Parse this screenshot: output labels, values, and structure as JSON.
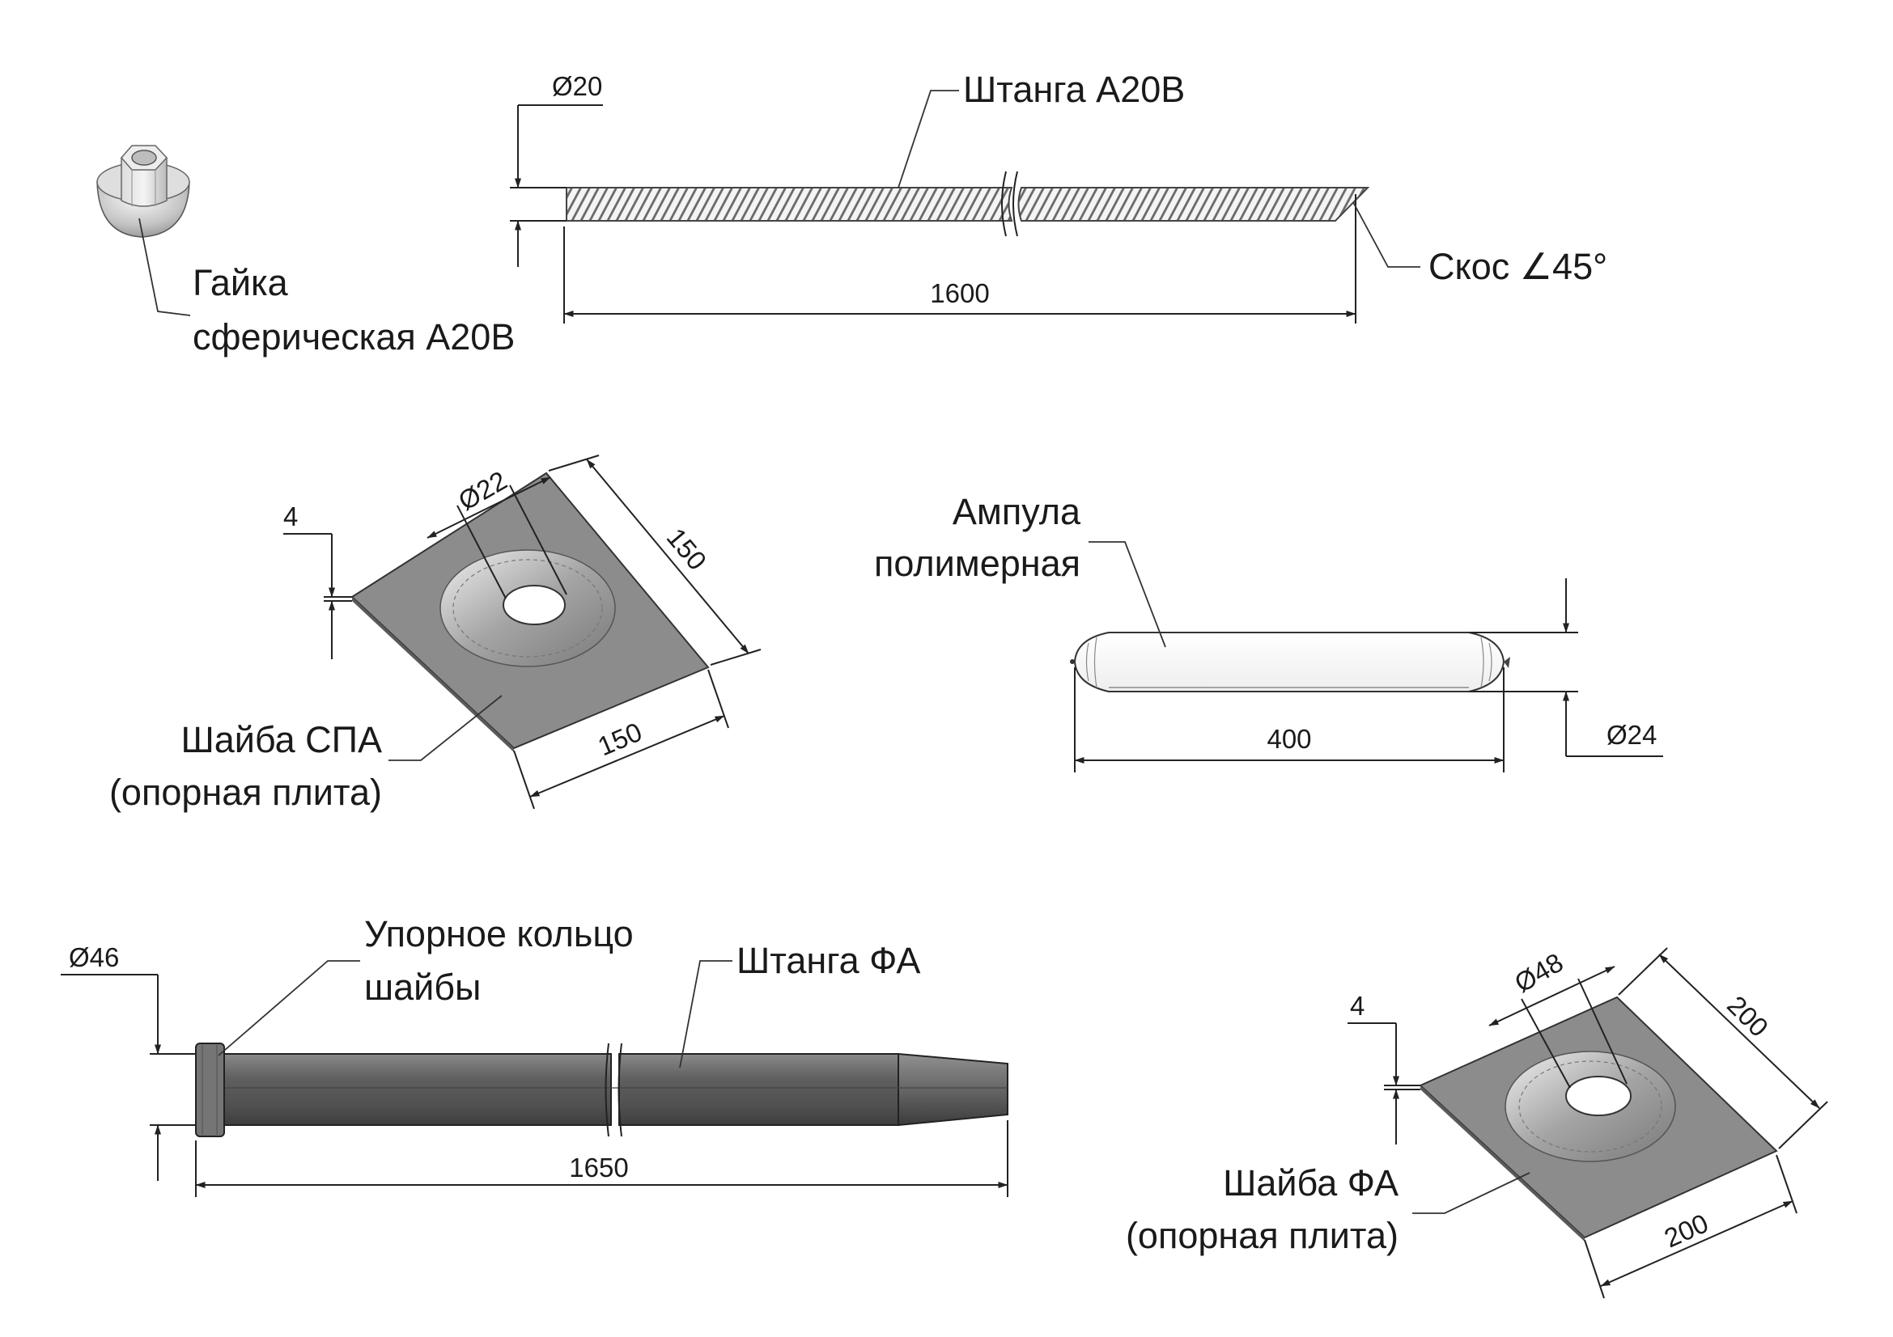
{
  "nut": {
    "label_line1": "Гайка",
    "label_line2": "сферическая А20В"
  },
  "rod_a20v": {
    "label": "Штанга А20В",
    "dia": "Ø20",
    "length": "1600",
    "bevel": "Скос ∠45°"
  },
  "washer_spa": {
    "label_line1": "Шайба СПА",
    "label_line2": "(опорная плита)",
    "thickness": "4",
    "hole": "Ø22",
    "side_a": "150",
    "side_b": "150"
  },
  "ampoule": {
    "label_line1": "Ампула",
    "label_line2": "полимерная",
    "length": "400",
    "dia": "Ø24"
  },
  "rod_fa": {
    "label": "Штанга ФА",
    "ring_line1": "Упорное кольцо",
    "ring_line2": "шайбы",
    "dia": "Ø46",
    "length": "1650"
  },
  "washer_fa": {
    "label_line1": "Шайба ФА",
    "label_line2": "(опорная плита)",
    "thickness": "4",
    "hole": "Ø48",
    "side_a": "200",
    "side_b": "200"
  },
  "colors": {
    "line": "#222222",
    "plate": "#8c8c8c",
    "rod": "#6a6a6a"
  }
}
